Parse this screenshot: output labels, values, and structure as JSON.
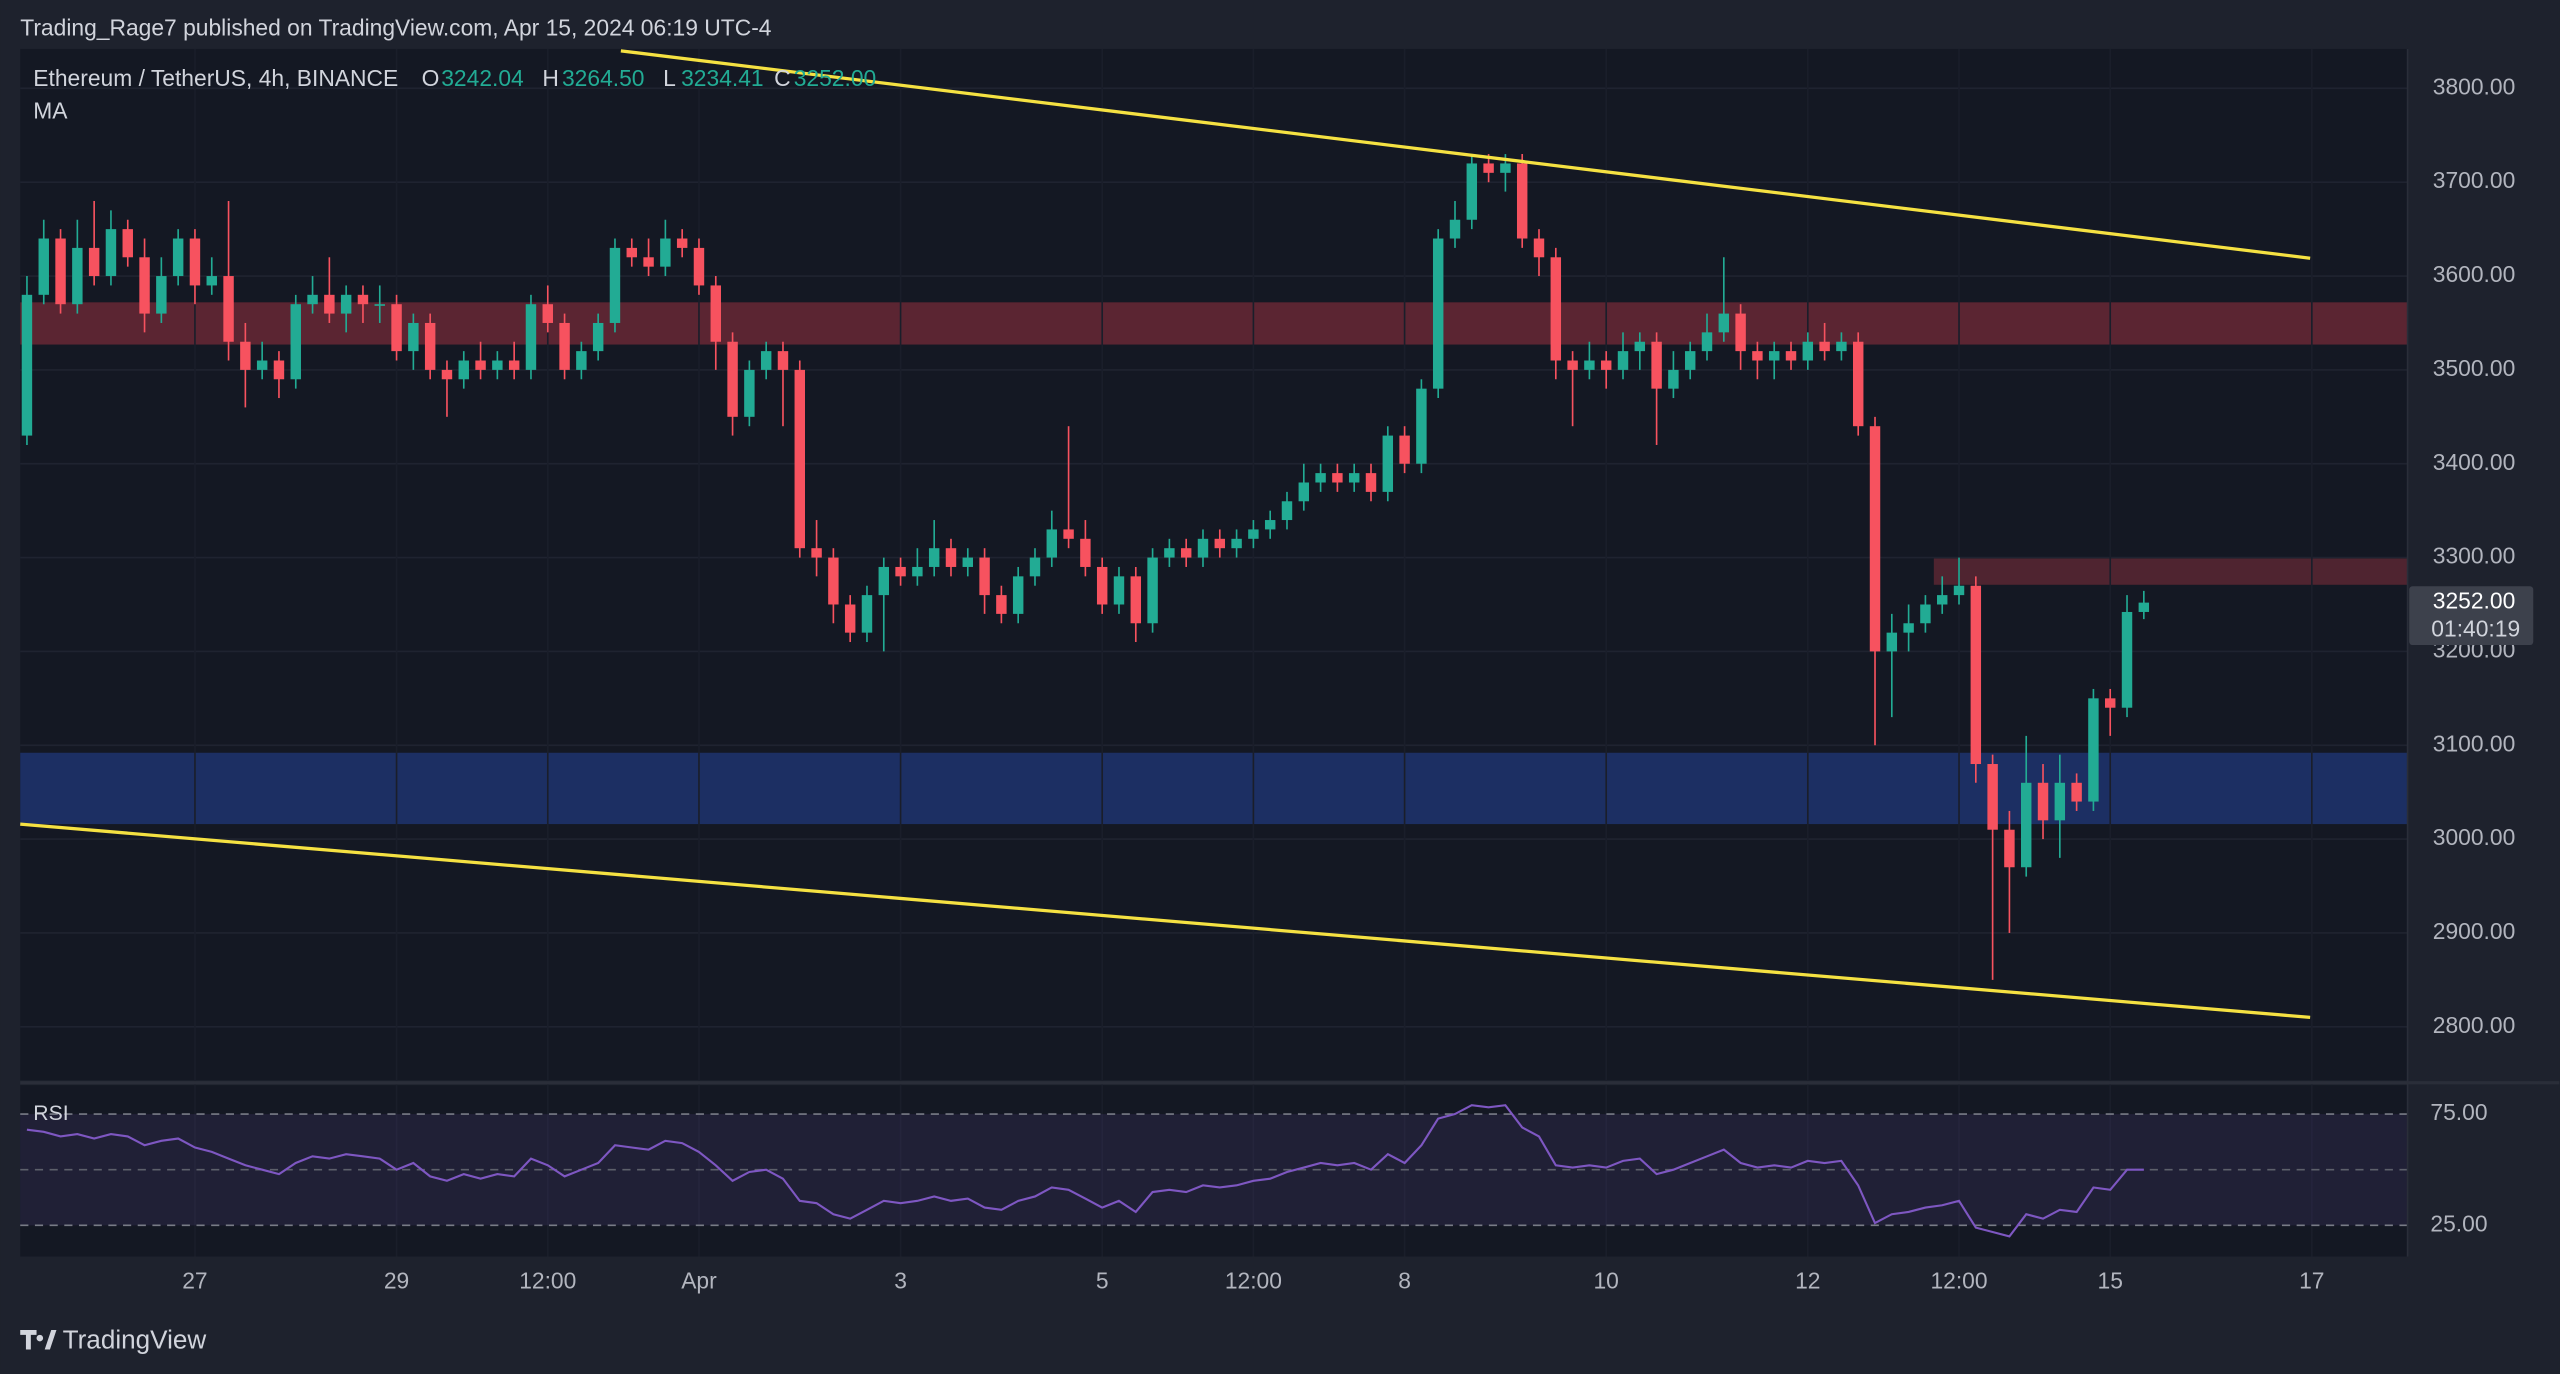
{
  "chart_data": {
    "type": "candlestick",
    "publisher": "Trading_Rage7 published on TradingView.com, Apr 15, 2024 06:19 UTC-4",
    "symbol": "Ethereum / TetherUS, 4h, BINANCE",
    "ohlc_names": [
      "O",
      "H",
      "L",
      "C"
    ],
    "ohlc_labels": [
      "3242.04",
      "3264.50",
      "3234.41",
      "3252.00"
    ],
    "indicator": "MA",
    "brand": "TradingView",
    "up_color": "#22ab94",
    "down_color": "#f7525f",
    "xlim": [
      -0.4,
      141.7
    ],
    "ylim": [
      2743,
      3842
    ],
    "yticks": [
      {
        "value": 2800,
        "label": "2800.00"
      },
      {
        "value": 2900,
        "label": "2900.00"
      },
      {
        "value": 3000,
        "label": "3000.00"
      },
      {
        "value": 3100,
        "label": "3100.00"
      },
      {
        "value": 3200,
        "label": "3200.00"
      },
      {
        "value": 3300,
        "label": "3300.00"
      },
      {
        "value": 3400,
        "label": "3400.00"
      },
      {
        "value": 3500,
        "label": "3500.00"
      },
      {
        "value": 3600,
        "label": "3600.00"
      },
      {
        "value": 3700,
        "label": "3700.00"
      },
      {
        "value": 3800,
        "label": "3800.00"
      }
    ],
    "xticks": [
      {
        "value": 10,
        "label": "27"
      },
      {
        "value": 22,
        "label": "29"
      },
      {
        "value": 31,
        "label": "12:00"
      },
      {
        "value": 40,
        "label": "Apr"
      },
      {
        "value": 52,
        "label": "3"
      },
      {
        "value": 64,
        "label": "5"
      },
      {
        "value": 73,
        "label": "12:00"
      },
      {
        "value": 82,
        "label": "8"
      },
      {
        "value": 94,
        "label": "10"
      },
      {
        "value": 106,
        "label": "12"
      },
      {
        "value": 115,
        "label": "12:00"
      },
      {
        "value": 124,
        "label": "15"
      },
      {
        "value": 136,
        "label": "17"
      }
    ],
    "last_price_label": "3252.00",
    "countdown": "01:40:19",
    "zones": [
      {
        "from": 3527,
        "to": 3572,
        "color": "#5b2532"
      },
      {
        "from": 3271,
        "to": 3299,
        "start": 113.5,
        "color": "#4f2430"
      },
      {
        "from": 3016,
        "to": 3092,
        "color": "#1c2f63"
      }
    ],
    "trendlines": [
      {
        "color": "#f5e142",
        "x": [
          35.35,
          135.9
        ],
        "y": [
          3840,
          3619
        ]
      },
      {
        "color": "#f5e142",
        "x": [
          -0.4,
          135.9
        ],
        "y": [
          3016,
          2810
        ]
      }
    ],
    "candles": [
      [
        3430,
        3600,
        3420,
        3580
      ],
      [
        3580,
        3660,
        3570,
        3640
      ],
      [
        3640,
        3650,
        3560,
        3570
      ],
      [
        3570,
        3660,
        3560,
        3630
      ],
      [
        3630,
        3680,
        3590,
        3600
      ],
      [
        3600,
        3670,
        3590,
        3650
      ],
      [
        3650,
        3660,
        3610,
        3620
      ],
      [
        3620,
        3640,
        3540,
        3560
      ],
      [
        3560,
        3620,
        3550,
        3600
      ],
      [
        3600,
        3650,
        3590,
        3640
      ],
      [
        3640,
        3650,
        3570,
        3590
      ],
      [
        3590,
        3620,
        3580,
        3600
      ],
      [
        3600,
        3680,
        3510,
        3530
      ],
      [
        3530,
        3550,
        3460,
        3500
      ],
      [
        3500,
        3530,
        3490,
        3510
      ],
      [
        3510,
        3520,
        3470,
        3490
      ],
      [
        3490,
        3580,
        3480,
        3570
      ],
      [
        3570,
        3600,
        3560,
        3580
      ],
      [
        3580,
        3620,
        3550,
        3560
      ],
      [
        3560,
        3590,
        3540,
        3580
      ],
      [
        3580,
        3590,
        3550,
        3570
      ],
      [
        3570,
        3590,
        3550,
        3570
      ],
      [
        3570,
        3580,
        3510,
        3520
      ],
      [
        3520,
        3560,
        3500,
        3550
      ],
      [
        3550,
        3560,
        3490,
        3500
      ],
      [
        3500,
        3510,
        3450,
        3490
      ],
      [
        3490,
        3520,
        3480,
        3510
      ],
      [
        3510,
        3530,
        3490,
        3500
      ],
      [
        3500,
        3520,
        3490,
        3510
      ],
      [
        3510,
        3530,
        3490,
        3500
      ],
      [
        3500,
        3580,
        3490,
        3570
      ],
      [
        3570,
        3590,
        3540,
        3550
      ],
      [
        3550,
        3560,
        3490,
        3500
      ],
      [
        3500,
        3530,
        3490,
        3520
      ],
      [
        3520,
        3560,
        3510,
        3550
      ],
      [
        3550,
        3640,
        3540,
        3630
      ],
      [
        3630,
        3640,
        3610,
        3620
      ],
      [
        3620,
        3640,
        3600,
        3610
      ],
      [
        3610,
        3660,
        3600,
        3640
      ],
      [
        3640,
        3650,
        3620,
        3630
      ],
      [
        3630,
        3640,
        3580,
        3590
      ],
      [
        3590,
        3600,
        3500,
        3530
      ],
      [
        3530,
        3540,
        3430,
        3450
      ],
      [
        3450,
        3510,
        3440,
        3500
      ],
      [
        3500,
        3530,
        3490,
        3520
      ],
      [
        3520,
        3530,
        3440,
        3500
      ],
      [
        3500,
        3510,
        3300,
        3310
      ],
      [
        3310,
        3340,
        3280,
        3300
      ],
      [
        3300,
        3310,
        3230,
        3250
      ],
      [
        3250,
        3260,
        3210,
        3220
      ],
      [
        3220,
        3270,
        3210,
        3260
      ],
      [
        3260,
        3300,
        3200,
        3290
      ],
      [
        3290,
        3300,
        3270,
        3280
      ],
      [
        3280,
        3310,
        3270,
        3290
      ],
      [
        3290,
        3340,
        3280,
        3310
      ],
      [
        3310,
        3320,
        3280,
        3290
      ],
      [
        3290,
        3310,
        3280,
        3300
      ],
      [
        3300,
        3310,
        3240,
        3260
      ],
      [
        3260,
        3270,
        3230,
        3240
      ],
      [
        3240,
        3290,
        3230,
        3280
      ],
      [
        3280,
        3310,
        3270,
        3300
      ],
      [
        3300,
        3350,
        3290,
        3330
      ],
      [
        3330,
        3440,
        3310,
        3320
      ],
      [
        3320,
        3340,
        3280,
        3290
      ],
      [
        3290,
        3300,
        3240,
        3250
      ],
      [
        3250,
        3290,
        3240,
        3280
      ],
      [
        3280,
        3290,
        3210,
        3230
      ],
      [
        3230,
        3310,
        3220,
        3300
      ],
      [
        3300,
        3320,
        3290,
        3310
      ],
      [
        3310,
        3320,
        3290,
        3300
      ],
      [
        3300,
        3330,
        3290,
        3320
      ],
      [
        3320,
        3330,
        3300,
        3310
      ],
      [
        3310,
        3330,
        3300,
        3320
      ],
      [
        3320,
        3340,
        3310,
        3330
      ],
      [
        3330,
        3350,
        3320,
        3340
      ],
      [
        3340,
        3370,
        3330,
        3360
      ],
      [
        3360,
        3400,
        3350,
        3380
      ],
      [
        3380,
        3400,
        3370,
        3390
      ],
      [
        3390,
        3400,
        3370,
        3380
      ],
      [
        3380,
        3400,
        3370,
        3390
      ],
      [
        3390,
        3400,
        3360,
        3370
      ],
      [
        3370,
        3440,
        3360,
        3430
      ],
      [
        3430,
        3440,
        3390,
        3400
      ],
      [
        3400,
        3490,
        3390,
        3480
      ],
      [
        3480,
        3650,
        3470,
        3640
      ],
      [
        3640,
        3680,
        3630,
        3660
      ],
      [
        3660,
        3730,
        3650,
        3720
      ],
      [
        3720,
        3730,
        3700,
        3710
      ],
      [
        3710,
        3730,
        3690,
        3720
      ],
      [
        3720,
        3730,
        3630,
        3640
      ],
      [
        3640,
        3650,
        3600,
        3620
      ],
      [
        3620,
        3630,
        3490,
        3510
      ],
      [
        3510,
        3520,
        3440,
        3500
      ],
      [
        3500,
        3530,
        3490,
        3510
      ],
      [
        3510,
        3520,
        3480,
        3500
      ],
      [
        3500,
        3540,
        3490,
        3520
      ],
      [
        3520,
        3540,
        3500,
        3530
      ],
      [
        3530,
        3540,
        3420,
        3480
      ],
      [
        3480,
        3520,
        3470,
        3500
      ],
      [
        3500,
        3530,
        3490,
        3520
      ],
      [
        3520,
        3560,
        3510,
        3540
      ],
      [
        3540,
        3620,
        3530,
        3560
      ],
      [
        3560,
        3570,
        3500,
        3520
      ],
      [
        3520,
        3530,
        3490,
        3510
      ],
      [
        3510,
        3530,
        3490,
        3520
      ],
      [
        3520,
        3530,
        3500,
        3510
      ],
      [
        3510,
        3540,
        3500,
        3530
      ],
      [
        3530,
        3550,
        3510,
        3520
      ],
      [
        3520,
        3540,
        3510,
        3530
      ],
      [
        3530,
        3540,
        3430,
        3440
      ],
      [
        3440,
        3450,
        3100,
        3200
      ],
      [
        3200,
        3240,
        3130,
        3220
      ],
      [
        3220,
        3250,
        3200,
        3230
      ],
      [
        3230,
        3260,
        3220,
        3250
      ],
      [
        3250,
        3280,
        3240,
        3260
      ],
      [
        3260,
        3300,
        3250,
        3270
      ],
      [
        3270,
        3280,
        3060,
        3080
      ],
      [
        3080,
        3090,
        2850,
        3010
      ],
      [
        3010,
        3030,
        2900,
        2970
      ],
      [
        2970,
        3110,
        2960,
        3060
      ],
      [
        3060,
        3080,
        3000,
        3020
      ],
      [
        3020,
        3090,
        2980,
        3060
      ],
      [
        3060,
        3070,
        3030,
        3040
      ],
      [
        3040,
        3160,
        3030,
        3150
      ],
      [
        3150,
        3160,
        3110,
        3140
      ],
      [
        3140,
        3260,
        3130,
        3242.04
      ],
      [
        3242.04,
        3264.5,
        3234.41,
        3252
      ]
    ],
    "rsi": {
      "title": "RSI",
      "color": "#7e57c2",
      "ylim": [
        11,
        88
      ],
      "yticks": [
        {
          "value": 25,
          "label": "25.00"
        },
        {
          "value": 75,
          "label": "75.00"
        }
      ],
      "midline": 50,
      "values": [
        68,
        67,
        65,
        66,
        64,
        66,
        65,
        61,
        63,
        64,
        60,
        58,
        55,
        52,
        50,
        48,
        53,
        56,
        55,
        57,
        56,
        55,
        50,
        53,
        47,
        45,
        48,
        46,
        48,
        47,
        55,
        52,
        47,
        50,
        53,
        61,
        60,
        59,
        63,
        62,
        58,
        52,
        45,
        49,
        50,
        46,
        36,
        35,
        30,
        28,
        32,
        36,
        35,
        36,
        38,
        36,
        37,
        33,
        32,
        36,
        38,
        42,
        41,
        37,
        33,
        36,
        31,
        40,
        41,
        40,
        43,
        42,
        43,
        45,
        46,
        49,
        51,
        53,
        52,
        53,
        50,
        57,
        53,
        61,
        73,
        75,
        79,
        78,
        79,
        69,
        65,
        52,
        51,
        52,
        51,
        54,
        55,
        48,
        50,
        53,
        56,
        59,
        53,
        51,
        52,
        51,
        54,
        53,
        54,
        43,
        26,
        30,
        31,
        33,
        34,
        36,
        24,
        22,
        20,
        30,
        28,
        32,
        31,
        42,
        41,
        50,
        50
      ]
    }
  }
}
